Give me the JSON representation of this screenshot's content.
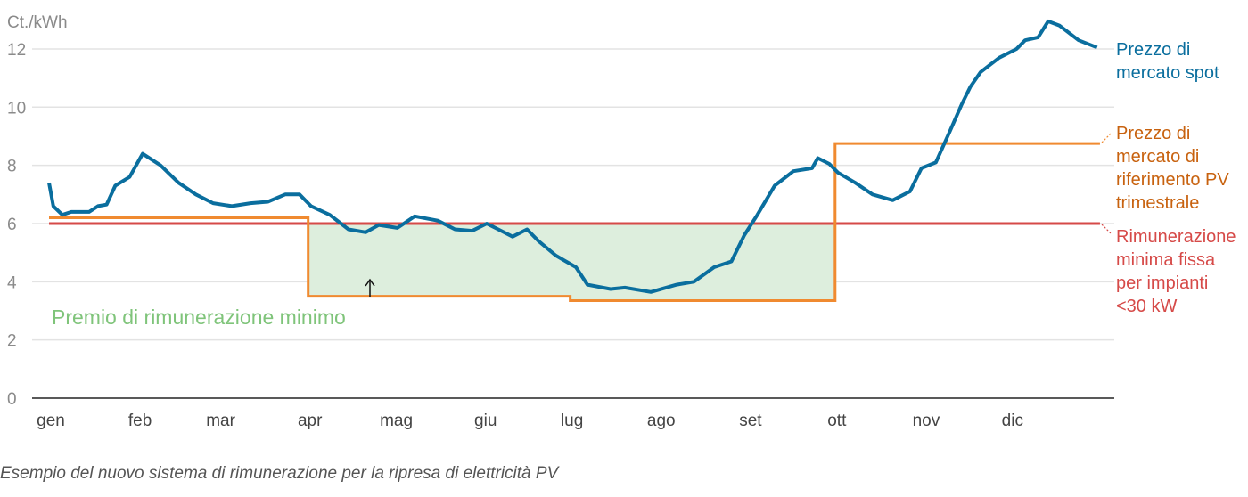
{
  "chart_data": {
    "type": "line",
    "ylabel": "Ct./kWh",
    "ylim": [
      0,
      13
    ],
    "yticks": [
      0,
      2,
      4,
      6,
      8,
      10,
      12
    ],
    "grid": true,
    "xlim_days": [
      0,
      365
    ],
    "months": [
      {
        "label": "gen",
        "day": 0
      },
      {
        "label": "feb",
        "day": 31
      },
      {
        "label": "mar",
        "day": 59
      },
      {
        "label": "apr",
        "day": 90
      },
      {
        "label": "mag",
        "day": 120
      },
      {
        "label": "giu",
        "day": 151
      },
      {
        "label": "lug",
        "day": 181
      },
      {
        "label": "ago",
        "day": 212
      },
      {
        "label": "set",
        "day": 243
      },
      {
        "label": "ott",
        "day": 273
      },
      {
        "label": "nov",
        "day": 304
      },
      {
        "label": "dic",
        "day": 334
      }
    ],
    "series": [
      {
        "name": "Prezzo di mercato spot",
        "label_lines": [
          "Prezzo di",
          "mercato spot"
        ],
        "color": "#0a6e9e",
        "points": [
          [
            0,
            7.4
          ],
          [
            1.5,
            6.6
          ],
          [
            4.6,
            6.3
          ],
          [
            7.7,
            6.4
          ],
          [
            13.9,
            6.4
          ],
          [
            17,
            6.6
          ],
          [
            20,
            6.65
          ],
          [
            23,
            7.3
          ],
          [
            28,
            7.6
          ],
          [
            32.5,
            8.4
          ],
          [
            38.7,
            8.0
          ],
          [
            45,
            7.4
          ],
          [
            51,
            7.0
          ],
          [
            57,
            6.7
          ],
          [
            63.5,
            6.6
          ],
          [
            70,
            6.7
          ],
          [
            76,
            6.75
          ],
          [
            82,
            7.0
          ],
          [
            87,
            7.0
          ],
          [
            91,
            6.6
          ],
          [
            97.5,
            6.3
          ],
          [
            104,
            5.8
          ],
          [
            110,
            5.7
          ],
          [
            114.5,
            5.95
          ],
          [
            121,
            5.85
          ],
          [
            127,
            6.25
          ],
          [
            135,
            6.1
          ],
          [
            141,
            5.8
          ],
          [
            147,
            5.75
          ],
          [
            152,
            6.0
          ],
          [
            156,
            5.8
          ],
          [
            161,
            5.55
          ],
          [
            166,
            5.8
          ],
          [
            170,
            5.4
          ],
          [
            176,
            4.9
          ],
          [
            183,
            4.5
          ],
          [
            187,
            3.9
          ],
          [
            195,
            3.75
          ],
          [
            200,
            3.8
          ],
          [
            209,
            3.65
          ],
          [
            218,
            3.9
          ],
          [
            224,
            4.0
          ],
          [
            231,
            4.5
          ],
          [
            237,
            4.7
          ],
          [
            241.5,
            5.6
          ],
          [
            246,
            6.3
          ],
          [
            252,
            7.3
          ],
          [
            258.5,
            7.8
          ],
          [
            265,
            7.9
          ],
          [
            267,
            8.25
          ],
          [
            271,
            8.05
          ],
          [
            274,
            7.75
          ],
          [
            280,
            7.4
          ],
          [
            286,
            7.0
          ],
          [
            293,
            6.8
          ],
          [
            299,
            7.1
          ],
          [
            303,
            7.9
          ],
          [
            308,
            8.1
          ],
          [
            313,
            9.2
          ],
          [
            317,
            10.1
          ],
          [
            320,
            10.7
          ],
          [
            323.5,
            11.2
          ],
          [
            330,
            11.7
          ],
          [
            336,
            12.0
          ],
          [
            339,
            12.3
          ],
          [
            343.5,
            12.4
          ],
          [
            347,
            12.95
          ],
          [
            351,
            12.8
          ],
          [
            357.6,
            12.3
          ],
          [
            364,
            12.05
          ]
        ]
      },
      {
        "name": "Prezzo di mercato di riferimento PV trimestrale",
        "label_lines": [
          "Prezzo di",
          "mercato di",
          "riferimento PV",
          "trimestrale"
        ],
        "color": "#f08a30",
        "label_color": "#c8620f",
        "steps": [
          [
            0,
            90,
            6.2
          ],
          [
            90,
            181,
            3.5
          ],
          [
            181,
            273,
            3.35
          ],
          [
            273,
            365,
            8.75
          ]
        ]
      },
      {
        "name": "Rimunerazione minima fissa per impianti <30 kW",
        "label_lines": [
          "Rimunerazione",
          "minima fissa",
          "per impianti",
          "<30 kW"
        ],
        "color": "#d64a48",
        "value": 6.0
      }
    ],
    "annotation": {
      "text": "Premio di rimunerazione minimo",
      "color": "#7fc47a",
      "fill": "#ddeedd"
    }
  },
  "caption": "Esempio del nuovo sistema di rimunerazione per la ripresa di elettricità PV"
}
